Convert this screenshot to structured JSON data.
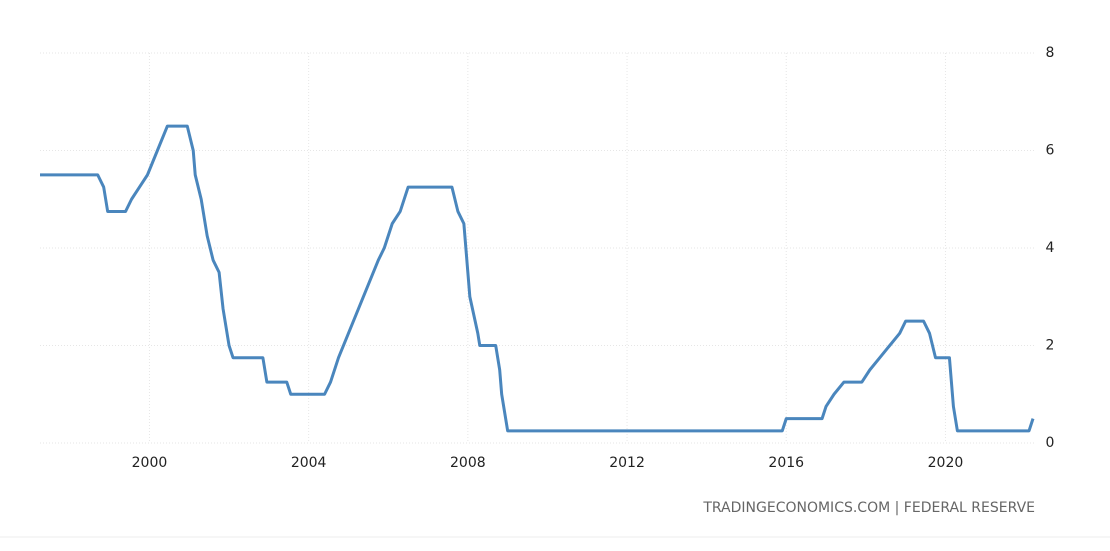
{
  "chart_data": {
    "type": "line",
    "source": "TRADINGECONOMICS.COM | FEDERAL RESERVE",
    "x": [
      1997.25,
      1998.7,
      1998.85,
      1998.95,
      1999.4,
      1999.55,
      1999.75,
      1999.95,
      2000.2,
      2000.45,
      2000.95,
      2001.1,
      2001.15,
      2001.3,
      2001.45,
      2001.6,
      2001.75,
      2001.85,
      2002.0,
      2002.1,
      2002.85,
      2002.95,
      2003.45,
      2003.55,
      2004.4,
      2004.55,
      2004.75,
      2005.0,
      2005.25,
      2005.5,
      2005.75,
      2005.9,
      2006.1,
      2006.3,
      2006.5,
      2007.6,
      2007.75,
      2007.9,
      2008.0,
      2008.05,
      2008.25,
      2008.3,
      2008.7,
      2008.8,
      2008.85,
      2008.95,
      2009.0,
      2015.9,
      2016.0,
      2016.9,
      2017.0,
      2017.2,
      2017.45,
      2017.9,
      2018.1,
      2018.35,
      2018.6,
      2018.85,
      2019.0,
      2019.45,
      2019.6,
      2019.75,
      2020.1,
      2020.2,
      2020.3,
      2022.1,
      2022.2
    ],
    "series": [
      {
        "color": "#4a86bd",
        "values": [
          5.5,
          5.5,
          5.25,
          4.75,
          4.75,
          5.0,
          5.25,
          5.5,
          6.0,
          6.5,
          6.5,
          6.0,
          5.5,
          5.0,
          4.25,
          3.75,
          3.5,
          2.75,
          2.0,
          1.75,
          1.75,
          1.25,
          1.25,
          1.0,
          1.0,
          1.25,
          1.75,
          2.25,
          2.75,
          3.25,
          3.75,
          4.0,
          4.5,
          4.75,
          5.25,
          5.25,
          4.75,
          4.5,
          3.5,
          3.0,
          2.25,
          2.0,
          2.0,
          1.5,
          1.0,
          0.5,
          0.25,
          0.25,
          0.5,
          0.5,
          0.75,
          1.0,
          1.25,
          1.25,
          1.5,
          1.75,
          2.0,
          2.25,
          2.5,
          2.5,
          2.25,
          1.75,
          1.75,
          0.75,
          0.25,
          0.25,
          0.5
        ]
      }
    ],
    "xlim": [
      1997.25,
      2022.25
    ],
    "xticks": [
      2000,
      2004,
      2008,
      2012,
      2016,
      2020
    ],
    "ylim": [
      0,
      8
    ],
    "yticks": [
      0,
      2,
      4,
      6,
      8
    ],
    "grid": true
  }
}
